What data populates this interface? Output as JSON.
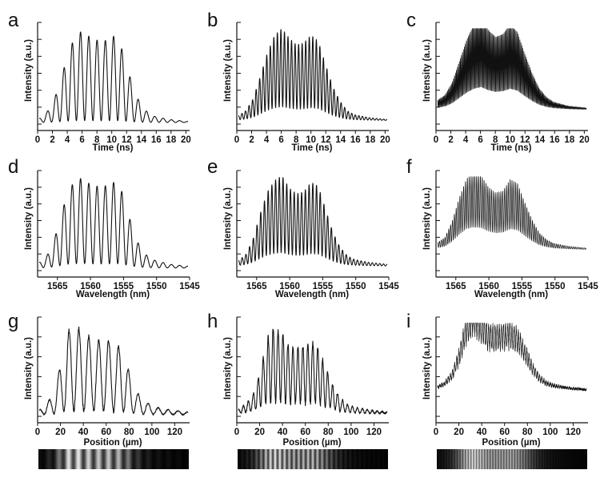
{
  "figure": {
    "ink_color": "#111111",
    "background": "#ffffff"
  },
  "chart_data": [
    {
      "panel": "a",
      "type": "line",
      "xlabel": "Time (ns)",
      "ylabel": "Intensity (a.u.)",
      "xlim": [
        0,
        20.5
      ],
      "x_reversed": false,
      "x_ticks": [
        0,
        2,
        4,
        6,
        8,
        10,
        12,
        14,
        16,
        18,
        20
      ],
      "y_ticks": 6,
      "y_tick_labels": false,
      "signal": {
        "fringes": 18,
        "envelope": [
          [
            0,
            0.04
          ],
          [
            1,
            0.1
          ],
          [
            2,
            0.22
          ],
          [
            3,
            0.45
          ],
          [
            4,
            0.72
          ],
          [
            5,
            0.9
          ],
          [
            6,
            0.95
          ],
          [
            7,
            0.88
          ],
          [
            8,
            0.85
          ],
          [
            9,
            0.84
          ],
          [
            10,
            0.9
          ],
          [
            11,
            0.86
          ],
          [
            12,
            0.6
          ],
          [
            13,
            0.35
          ],
          [
            14,
            0.18
          ],
          [
            15,
            0.1
          ],
          [
            16,
            0.06
          ],
          [
            18,
            0.03
          ],
          [
            20.5,
            0.01
          ]
        ],
        "baseline": 0.05,
        "mod_depth": 0.98,
        "noise": 0
      },
      "fringe_strip": null
    },
    {
      "panel": "b",
      "type": "line",
      "xlabel": "Time (ns)",
      "ylabel": "Intensity (a.u.)",
      "xlim": [
        0,
        20.5
      ],
      "x_reversed": false,
      "x_ticks": [
        0,
        2,
        4,
        6,
        8,
        10,
        12,
        14,
        16,
        18,
        20
      ],
      "y_ticks": 6,
      "y_tick_labels": false,
      "signal": {
        "fringes": 42,
        "envelope": [
          [
            0,
            0.05
          ],
          [
            1,
            0.1
          ],
          [
            2,
            0.22
          ],
          [
            3,
            0.45
          ],
          [
            4,
            0.7
          ],
          [
            5,
            0.88
          ],
          [
            6,
            0.95
          ],
          [
            7,
            0.85
          ],
          [
            8,
            0.78
          ],
          [
            9,
            0.8
          ],
          [
            10,
            0.88
          ],
          [
            11,
            0.82
          ],
          [
            12,
            0.58
          ],
          [
            13,
            0.35
          ],
          [
            14,
            0.2
          ],
          [
            15,
            0.1
          ],
          [
            16,
            0.06
          ],
          [
            18,
            0.03
          ],
          [
            20.5,
            0.01
          ]
        ],
        "baseline": 0.07,
        "mod_depth": 0.85,
        "noise": 0
      },
      "fringe_strip": null
    },
    {
      "panel": "c",
      "type": "line",
      "xlabel": "Time (ns)",
      "ylabel": "Intensity (a.u.)",
      "xlim": [
        0,
        20.5
      ],
      "x_reversed": false,
      "x_ticks": [
        0,
        2,
        4,
        6,
        8,
        10,
        12,
        14,
        16,
        18,
        20
      ],
      "y_ticks": 6,
      "y_tick_labels": false,
      "signal": {
        "fringes": 150,
        "envelope": [
          [
            0,
            0.1
          ],
          [
            1,
            0.15
          ],
          [
            2,
            0.28
          ],
          [
            3,
            0.5
          ],
          [
            4,
            0.72
          ],
          [
            5,
            0.88
          ],
          [
            6,
            0.95
          ],
          [
            7,
            0.82
          ],
          [
            8,
            0.75
          ],
          [
            9,
            0.78
          ],
          [
            10,
            0.88
          ],
          [
            11,
            0.8
          ],
          [
            12,
            0.58
          ],
          [
            13,
            0.38
          ],
          [
            14,
            0.22
          ],
          [
            15,
            0.13
          ],
          [
            16,
            0.08
          ],
          [
            18,
            0.04
          ],
          [
            20.5,
            0.02
          ]
        ],
        "baseline": 0.18,
        "mod_depth": 0.75,
        "noise": 0
      },
      "fringe_strip": null
    },
    {
      "panel": "d",
      "type": "line",
      "xlabel": "Wavelength (nm)",
      "ylabel": "Intensity (a.u.)",
      "xlim": [
        1568,
        1545
      ],
      "x_reversed": true,
      "x_ticks": [
        1565,
        1560,
        1555,
        1550,
        1545
      ],
      "y_ticks": 6,
      "y_tick_labels": false,
      "signal": {
        "fringes": 18,
        "envelope": [
          [
            0,
            0.06
          ],
          [
            1,
            0.12
          ],
          [
            2,
            0.28
          ],
          [
            3,
            0.55
          ],
          [
            4,
            0.82
          ],
          [
            5,
            0.92
          ],
          [
            6,
            0.95
          ],
          [
            7,
            0.88
          ],
          [
            8,
            0.86
          ],
          [
            9,
            0.86
          ],
          [
            10,
            0.9
          ],
          [
            11,
            0.9
          ],
          [
            12,
            0.65
          ],
          [
            13,
            0.38
          ],
          [
            14,
            0.2
          ],
          [
            15,
            0.12
          ],
          [
            16,
            0.08
          ],
          [
            18,
            0.04
          ],
          [
            20.5,
            0.02
          ]
        ],
        "baseline": 0.06,
        "mod_depth": 0.95,
        "noise": 0
      },
      "fringe_strip": null
    },
    {
      "panel": "e",
      "type": "line",
      "xlabel": "Wavelength (nm)",
      "ylabel": "Intensity (a.u.)",
      "xlim": [
        1568,
        1545
      ],
      "x_reversed": true,
      "x_ticks": [
        1565,
        1560,
        1555,
        1550,
        1545
      ],
      "y_ticks": 6,
      "y_tick_labels": false,
      "signal": {
        "fringes": 40,
        "envelope": [
          [
            0,
            0.06
          ],
          [
            1,
            0.12
          ],
          [
            2,
            0.28
          ],
          [
            3,
            0.55
          ],
          [
            4,
            0.78
          ],
          [
            5,
            0.9
          ],
          [
            6,
            0.95
          ],
          [
            7,
            0.82
          ],
          [
            8,
            0.76
          ],
          [
            9,
            0.78
          ],
          [
            10,
            0.88
          ],
          [
            11,
            0.84
          ],
          [
            12,
            0.6
          ],
          [
            13,
            0.36
          ],
          [
            14,
            0.2
          ],
          [
            15,
            0.11
          ],
          [
            16,
            0.07
          ],
          [
            18,
            0.04
          ],
          [
            20.5,
            0.02
          ]
        ],
        "baseline": 0.08,
        "mod_depth": 0.85,
        "noise": 0
      },
      "fringe_strip": null
    },
    {
      "panel": "f",
      "type": "line",
      "xlabel": "Wavelength (nm)",
      "ylabel": "Intensity (a.u.)",
      "xlim": [
        1568,
        1545
      ],
      "x_reversed": true,
      "x_ticks": [
        1565,
        1560,
        1555,
        1550,
        1545
      ],
      "y_ticks": 6,
      "y_tick_labels": false,
      "signal": {
        "fringes": 80,
        "envelope": [
          [
            0,
            0.08
          ],
          [
            1,
            0.13
          ],
          [
            2,
            0.3
          ],
          [
            3,
            0.55
          ],
          [
            4,
            0.75
          ],
          [
            5,
            0.8
          ],
          [
            6,
            0.78
          ],
          [
            7,
            0.66
          ],
          [
            8,
            0.6
          ],
          [
            9,
            0.62
          ],
          [
            10,
            0.74
          ],
          [
            11,
            0.7
          ],
          [
            12,
            0.5
          ],
          [
            13,
            0.32
          ],
          [
            14,
            0.18
          ],
          [
            15,
            0.11
          ],
          [
            16,
            0.07
          ],
          [
            18,
            0.04
          ],
          [
            20.5,
            0.02
          ]
        ],
        "baseline": 0.25,
        "mod_depth": 0.7,
        "noise": 0
      },
      "fringe_strip": null
    },
    {
      "panel": "g",
      "type": "line",
      "xlabel": "Position (µm)",
      "ylabel": "Intensity (a.u.)",
      "xlim": [
        0,
        133
      ],
      "x_reversed": false,
      "x_ticks": [
        0,
        20,
        40,
        60,
        80,
        100,
        120
      ],
      "y_ticks": 5,
      "y_tick_labels": false,
      "signal": {
        "fringes": 15,
        "envelope": [
          [
            0,
            0.05
          ],
          [
            1,
            0.12
          ],
          [
            2,
            0.22
          ],
          [
            3,
            0.55
          ],
          [
            4,
            0.88
          ],
          [
            5,
            0.95
          ],
          [
            6,
            0.86
          ],
          [
            7,
            0.82
          ],
          [
            8,
            0.78
          ],
          [
            9,
            0.8
          ],
          [
            10,
            0.76
          ],
          [
            11,
            0.72
          ],
          [
            12,
            0.55
          ],
          [
            13,
            0.3
          ],
          [
            14,
            0.18
          ],
          [
            15,
            0.12
          ],
          [
            16,
            0.08
          ],
          [
            18,
            0.05
          ],
          [
            20.5,
            0.03
          ]
        ],
        "baseline": 0.05,
        "mod_depth": 0.95,
        "noise": 0.04
      },
      "fringe_strip": {
        "stripes": 15,
        "contrast": 0.75
      }
    },
    {
      "panel": "h",
      "type": "line",
      "xlabel": "Position (µm)",
      "ylabel": "Intensity (a.u.)",
      "xlim": [
        0,
        133
      ],
      "x_reversed": false,
      "x_ticks": [
        0,
        20,
        40,
        60,
        80,
        100,
        120
      ],
      "y_ticks": 5,
      "y_tick_labels": false,
      "signal": {
        "fringes": 30,
        "envelope": [
          [
            0,
            0.05
          ],
          [
            1,
            0.1
          ],
          [
            2,
            0.2
          ],
          [
            3,
            0.45
          ],
          [
            4,
            0.8
          ],
          [
            5,
            0.92
          ],
          [
            6,
            0.85
          ],
          [
            7,
            0.72
          ],
          [
            8,
            0.7
          ],
          [
            9,
            0.72
          ],
          [
            10,
            0.78
          ],
          [
            11,
            0.7
          ],
          [
            12,
            0.5
          ],
          [
            13,
            0.3
          ],
          [
            14,
            0.17
          ],
          [
            15,
            0.1
          ],
          [
            16,
            0.07
          ],
          [
            18,
            0.04
          ],
          [
            20.5,
            0.02
          ]
        ],
        "baseline": 0.06,
        "mod_depth": 0.85,
        "noise": 0.05
      },
      "fringe_strip": {
        "stripes": 32,
        "contrast": 0.7
      }
    },
    {
      "panel": "i",
      "type": "line",
      "xlabel": "Position (µm)",
      "ylabel": "Intensity (a.u.)",
      "xlim": [
        0,
        133
      ],
      "x_reversed": false,
      "x_ticks": [
        0,
        20,
        40,
        60,
        80,
        100,
        120
      ],
      "y_ticks": 5,
      "y_tick_labels": false,
      "signal": {
        "fringes": 70,
        "envelope": [
          [
            0,
            0.05
          ],
          [
            1,
            0.1
          ],
          [
            2,
            0.2
          ],
          [
            3,
            0.45
          ],
          [
            4,
            0.8
          ],
          [
            5,
            0.95
          ],
          [
            6,
            0.82
          ],
          [
            7,
            0.7
          ],
          [
            8,
            0.68
          ],
          [
            9,
            0.7
          ],
          [
            10,
            0.72
          ],
          [
            11,
            0.66
          ],
          [
            12,
            0.5
          ],
          [
            13,
            0.3
          ],
          [
            14,
            0.17
          ],
          [
            15,
            0.1
          ],
          [
            16,
            0.07
          ],
          [
            18,
            0.04
          ],
          [
            20.5,
            0.02
          ]
        ],
        "baseline": 0.3,
        "mod_depth": 0.35,
        "noise": 0.08
      },
      "fringe_strip": {
        "stripes": 55,
        "contrast": 0.55
      }
    }
  ]
}
